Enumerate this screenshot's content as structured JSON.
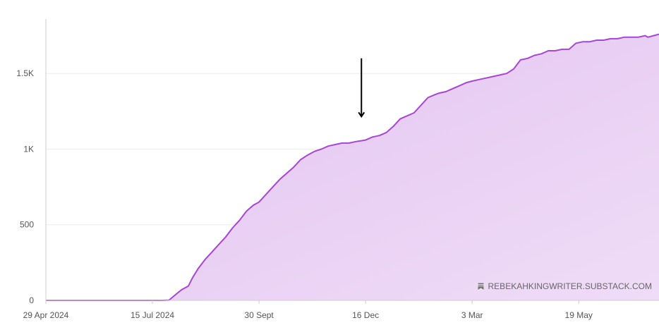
{
  "chart_data": {
    "type": "area",
    "title": "",
    "xlabel": "",
    "ylabel": "",
    "x_ticks": [
      "29 Apr 2024",
      "15 Jul 2024",
      "30 Sept",
      "16 Dec",
      "3 Mar",
      "19 May"
    ],
    "x_tick_dates": [
      "2024-04-29",
      "2024-07-15",
      "2024-09-30",
      "2024-12-16",
      "2025-03-03",
      "2025-05-19"
    ],
    "xlim": [
      "2024-04-29",
      "2025-07-16"
    ],
    "y_ticks": [
      "0",
      "500",
      "1K",
      "1.5K"
    ],
    "y_tick_values": [
      0,
      500,
      1000,
      1500
    ],
    "ylim": [
      0,
      1860
    ],
    "grid": "horizontal",
    "colors": {
      "line": "#a646d8",
      "fill_top": "#e2c3f0",
      "fill_bottom": "#efdcf7",
      "grid": "#ececec",
      "axis": "#cccccc"
    },
    "series": [
      {
        "x": [
          "2024-04-29",
          "2024-05-20",
          "2024-06-10",
          "2024-07-01",
          "2024-07-15",
          "2024-07-22",
          "2024-07-27",
          "2024-08-01",
          "2024-08-05",
          "2024-08-10",
          "2024-08-13",
          "2024-08-17",
          "2024-08-22",
          "2024-08-27",
          "2024-09-01",
          "2024-09-06",
          "2024-09-11",
          "2024-09-16",
          "2024-09-21",
          "2024-09-26",
          "2024-09-30",
          "2024-10-05",
          "2024-10-10",
          "2024-10-15",
          "2024-10-20",
          "2024-10-25",
          "2024-10-30",
          "2024-11-04",
          "2024-11-09",
          "2024-11-14",
          "2024-11-19",
          "2024-11-24",
          "2024-11-29",
          "2024-12-04",
          "2024-12-09",
          "2024-12-16",
          "2024-12-21",
          "2024-12-26",
          "2024-12-31",
          "2025-01-05",
          "2025-01-10",
          "2025-01-15",
          "2025-01-20",
          "2025-01-25",
          "2025-01-30",
          "2025-02-04",
          "2025-02-07",
          "2025-02-12",
          "2025-02-17",
          "2025-02-22",
          "2025-02-27",
          "2025-03-03",
          "2025-03-08",
          "2025-03-13",
          "2025-03-18",
          "2025-03-23",
          "2025-03-28",
          "2025-04-02",
          "2025-04-07",
          "2025-04-12",
          "2025-04-17",
          "2025-04-22",
          "2025-04-27",
          "2025-05-02",
          "2025-05-07",
          "2025-05-12",
          "2025-05-17",
          "2025-05-22",
          "2025-05-27",
          "2025-06-01",
          "2025-06-06",
          "2025-06-11",
          "2025-06-16",
          "2025-06-21",
          "2025-06-26",
          "2025-07-01",
          "2025-07-06",
          "2025-07-08",
          "2025-07-12",
          "2025-07-16"
        ],
        "y": [
          0,
          0,
          0,
          0,
          0,
          0,
          2,
          40,
          70,
          95,
          150,
          210,
          270,
          320,
          370,
          420,
          480,
          530,
          590,
          630,
          650,
          700,
          750,
          800,
          840,
          880,
          930,
          960,
          985,
          1000,
          1020,
          1030,
          1040,
          1040,
          1050,
          1060,
          1080,
          1090,
          1110,
          1150,
          1200,
          1220,
          1240,
          1290,
          1340,
          1360,
          1370,
          1380,
          1400,
          1420,
          1440,
          1450,
          1460,
          1470,
          1480,
          1490,
          1500,
          1530,
          1590,
          1600,
          1620,
          1630,
          1650,
          1650,
          1660,
          1660,
          1700,
          1710,
          1710,
          1720,
          1720,
          1730,
          1730,
          1740,
          1740,
          1740,
          1750,
          1740,
          1750,
          1760
        ]
      }
    ],
    "annotation": {
      "type": "down-arrow",
      "x": "2024-12-13",
      "y_top": 1600,
      "y_bottom": 1215
    }
  },
  "watermark": {
    "icon": "bookmark-icon",
    "text": "REBEKAHKINGWRITER.SUBSTACK.COM"
  }
}
